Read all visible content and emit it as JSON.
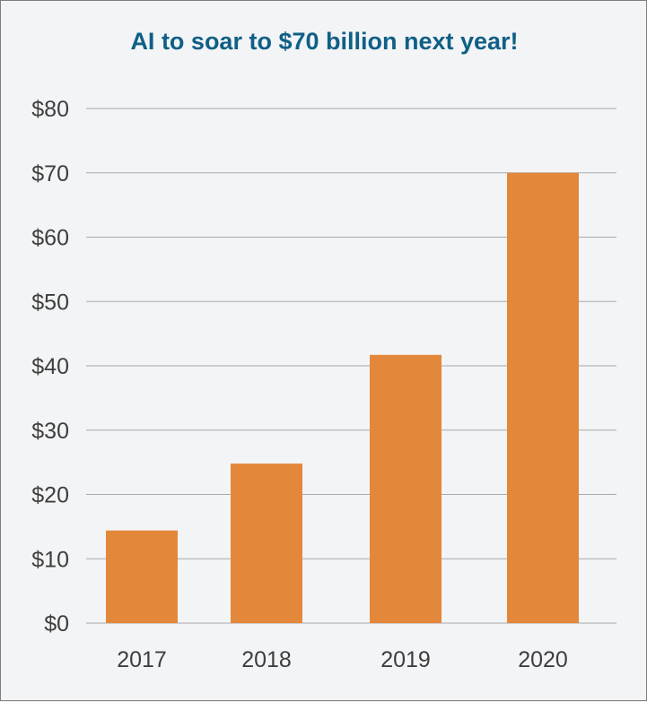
{
  "chart_data": {
    "type": "bar",
    "title": "AI to soar to $70 billion next year!",
    "categories": [
      "2017",
      "2018",
      "2019",
      "2020"
    ],
    "values": [
      14.4,
      24.8,
      41.7,
      70
    ],
    "ylim": [
      0,
      80
    ],
    "yticks": [
      0,
      10,
      20,
      30,
      40,
      50,
      60,
      70,
      80
    ],
    "ytick_labels": [
      "$0",
      "$10",
      "$20",
      "$30",
      "$40",
      "$50",
      "$60",
      "$70",
      "$80"
    ],
    "xlabel": "",
    "ylabel": "",
    "grid": true,
    "bar_color": "#e3883a",
    "grid_color": "#a9a9a9",
    "title_color": "#0f5f86"
  }
}
